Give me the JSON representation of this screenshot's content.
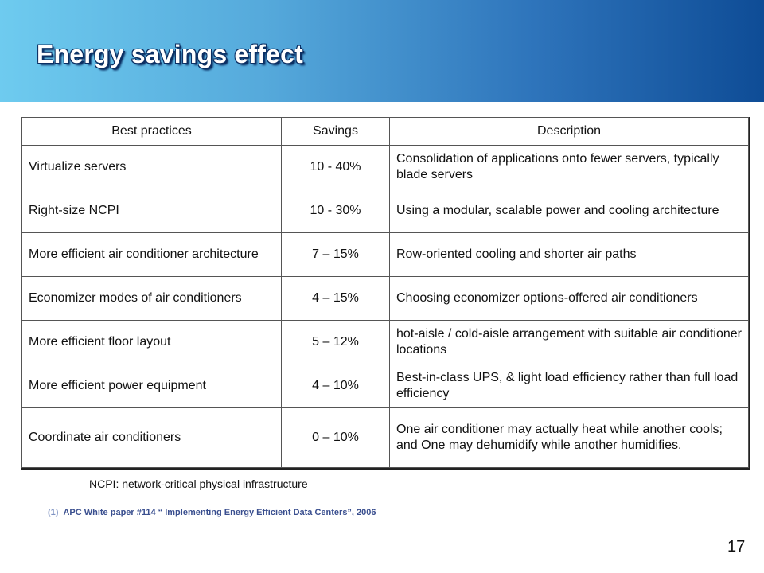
{
  "header": {
    "title": "Energy savings effect"
  },
  "table": {
    "columns": [
      "Best practices",
      "Savings",
      "Description"
    ],
    "rows": [
      {
        "practice": "Virtualize servers",
        "savings": "10 - 40%",
        "description": "Consolidation of applications onto fewer servers, typically blade servers"
      },
      {
        "practice": "Right-size NCPI",
        "savings": "10 - 30%",
        "description": "Using a modular, scalable power and cooling architecture"
      },
      {
        "practice": "More efficient air conditioner architecture",
        "savings": "7 – 15%",
        "description": "Row-oriented cooling and shorter air paths"
      },
      {
        "practice": "Economizer modes of air conditioners",
        "savings": "4 – 15%",
        "description": "Choosing economizer options-offered air conditioners"
      },
      {
        "practice": "More efficient floor layout",
        "savings": "5 – 12%",
        "description": "hot-aisle / cold-aisle arrangement with suitable air conditioner locations"
      },
      {
        "practice": "More efficient power equipment",
        "savings": "4 – 10%",
        "description": "Best-in-class UPS, & light load efficiency rather than full load efficiency"
      },
      {
        "practice": "Coordinate air conditioners",
        "savings": "0 – 10%",
        "description": "One air conditioner may actually heat while another cools; and One may dehumidify while another humidifies."
      }
    ]
  },
  "footnote": "NCPI: network-critical physical infrastructure",
  "citation": {
    "number": "(1)",
    "text": "APC White paper #114 “ Implementing Energy Efficient Data Centers”, 2006"
  },
  "page_number": "17",
  "colors": {
    "header_light": "#6ecbef",
    "header_dark": "#0e4c96",
    "citation_text": "#3a4f8f"
  }
}
